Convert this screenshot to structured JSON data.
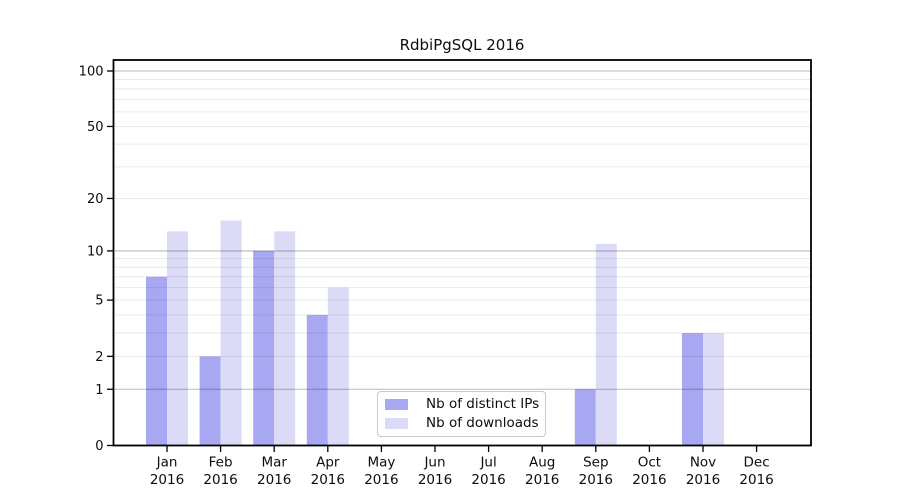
{
  "title": "RdbiPgSQL 2016",
  "colors": {
    "distinct_ips": "#a8a8f2",
    "downloads": "#dbdbf7",
    "major_gridline": "#c2c2c2",
    "minor_gridline": "#e9e9e9",
    "axis": "#000000",
    "legend_border": "#c9c9c9",
    "background": "#ffffff"
  },
  "chart_data": {
    "type": "bar",
    "title": "RdbiPgSQL 2016",
    "categories": [
      "Jan",
      "Feb",
      "Mar",
      "Apr",
      "May",
      "Jun",
      "Jul",
      "Aug",
      "Sep",
      "Oct",
      "Nov",
      "Dec"
    ],
    "year": "2016",
    "series": [
      {
        "name": "Nb of distinct IPs",
        "color": "#a8a8f2",
        "values": [
          7,
          2,
          10,
          4,
          0,
          0,
          0,
          0,
          1,
          0,
          3,
          0
        ]
      },
      {
        "name": "Nb of downloads",
        "color": "#dbdbf7",
        "values": [
          13,
          15,
          13,
          6,
          0,
          0,
          0,
          0,
          11,
          0,
          3,
          0
        ]
      }
    ],
    "xlabel": "",
    "ylabel": "",
    "y_scale": "log1p",
    "ylim": [
      0,
      115
    ],
    "y_ticks": [
      0,
      1,
      2,
      5,
      10,
      20,
      50,
      100
    ],
    "y_major_gridlines": [
      1,
      10,
      100
    ],
    "y_minor_gridlines": [
      2,
      3,
      4,
      5,
      6,
      7,
      8,
      9,
      20,
      30,
      40,
      50,
      60,
      70,
      80,
      90
    ],
    "grid": true,
    "legend_position": "lower center"
  }
}
